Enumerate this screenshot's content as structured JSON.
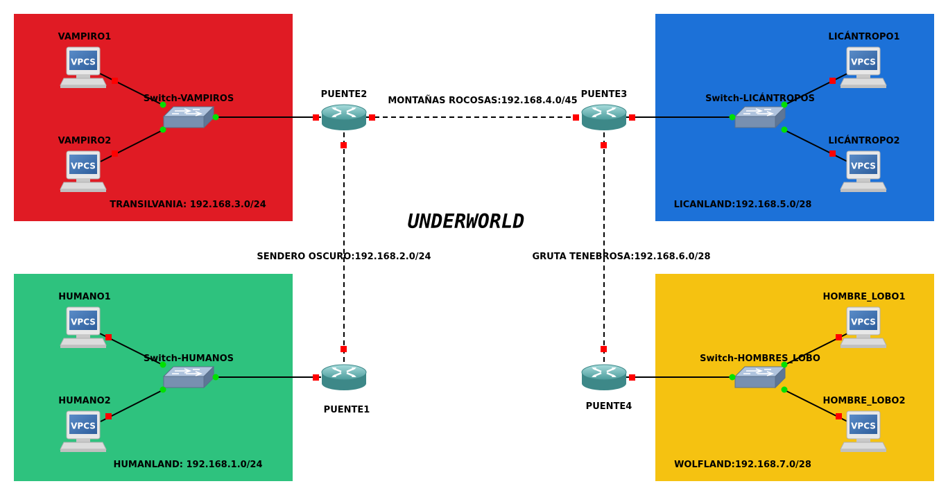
{
  "title": "UNDERWORLD",
  "colors": {
    "transilvania": "#e01b24",
    "licanland": "#1c71d8",
    "humanland": "#2ec27e",
    "wolfland": "#f5c211",
    "port_router": "#ff0000",
    "port_switch": "#00e000"
  },
  "zones": {
    "transilvania": "TRANSILVANIA: 192.168.3.0/24",
    "licanland": "LICANLAND:192.168.5.0/28",
    "humanland": "HUMANLAND: 192.168.1.0/24",
    "wolfland": "WOLFLAND:192.168.7.0/28"
  },
  "links": {
    "montanas": "MONTAÑAS ROCOSAS:192.168.4.0/45",
    "sendero": "SENDERO OSCURO:192.168.2.0/24",
    "gruta": "GRUTA TENEBROSA:192.168.6.0/28"
  },
  "routers": {
    "puente1": "PUENTE1",
    "puente2": "PUENTE2",
    "puente3": "PUENTE3",
    "puente4": "PUENTE4"
  },
  "switches": {
    "vampiros": "Switch-VAMPIROS",
    "licantropos": "Switch-LICÁNTROPOS",
    "humanos": "Switch-HUMANOS",
    "lobos": "Switch-HOMBRES_LOBO"
  },
  "pcs": {
    "vampiro1": "VAMPIRO1",
    "vampiro2": "VAMPIRO2",
    "licantropo1": "LICÁNTROPO1",
    "licantropo2": "LICÁNTROPO2",
    "humano1": "HUMANO1",
    "humano2": "HUMANO2",
    "lobo1": "HOMBRE_LOBO1",
    "lobo2": "HOMBRE_LOBO2"
  },
  "pc_badge": "VPCS"
}
